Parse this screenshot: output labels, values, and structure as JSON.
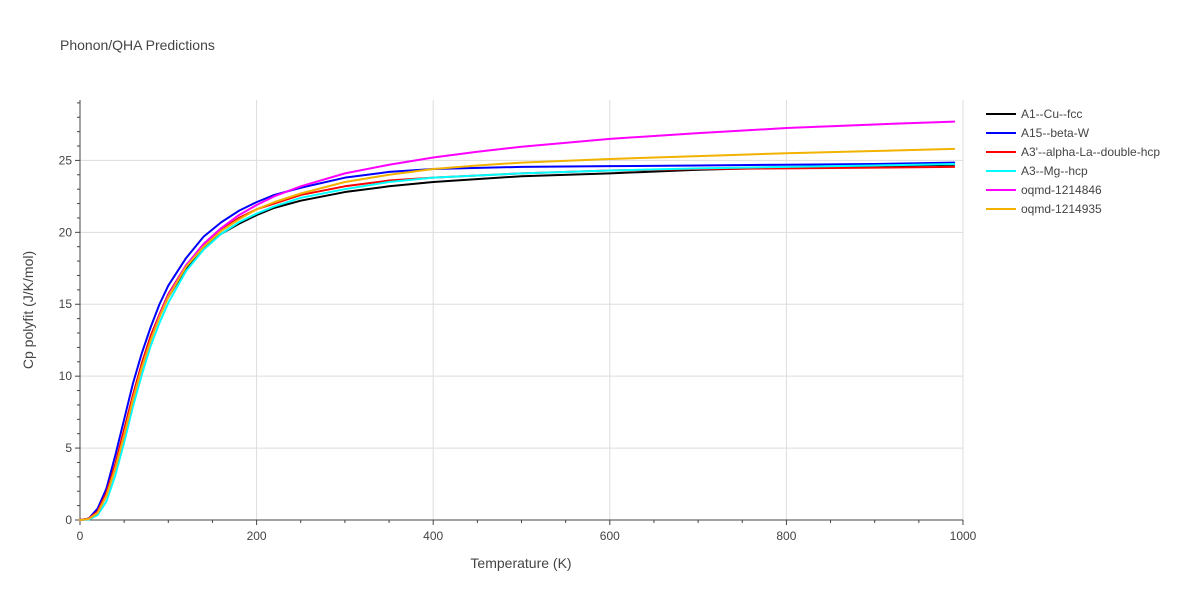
{
  "chart_data": {
    "type": "line",
    "title": "Phonon/QHA Predictions",
    "xlabel": "Temperature (K)",
    "ylabel": "Cp polyfit (J/K/mol)",
    "xlim": [
      0,
      1000
    ],
    "ylim": [
      0,
      29.2
    ],
    "xticks": [
      0,
      200,
      400,
      600,
      800,
      1000
    ],
    "yticks": [
      0,
      5,
      10,
      15,
      20,
      25
    ],
    "grid": true,
    "legend_position": "right",
    "series": [
      {
        "name": "A1--Cu--fcc",
        "color": "#000000",
        "x": [
          0,
          10,
          20,
          30,
          40,
          50,
          60,
          70,
          80,
          90,
          100,
          120,
          140,
          160,
          180,
          200,
          220,
          250,
          300,
          350,
          400,
          500,
          600,
          700,
          800,
          900,
          990
        ],
        "y": [
          0,
          0.1,
          0.6,
          1.8,
          3.7,
          6.0,
          8.5,
          10.7,
          12.6,
          14.2,
          15.5,
          17.5,
          18.9,
          19.9,
          20.6,
          21.2,
          21.7,
          22.2,
          22.8,
          23.2,
          23.5,
          23.9,
          24.1,
          24.35,
          24.5,
          24.6,
          24.7
        ]
      },
      {
        "name": "A15--beta-W",
        "color": "#0000ff",
        "x": [
          0,
          10,
          20,
          30,
          40,
          50,
          60,
          70,
          80,
          90,
          100,
          120,
          140,
          160,
          180,
          200,
          220,
          250,
          300,
          350,
          400,
          500,
          600,
          700,
          800,
          900,
          990
        ],
        "y": [
          0,
          0.1,
          0.8,
          2.2,
          4.5,
          7.0,
          9.5,
          11.6,
          13.4,
          15.0,
          16.3,
          18.2,
          19.7,
          20.7,
          21.5,
          22.1,
          22.6,
          23.1,
          23.8,
          24.2,
          24.4,
          24.55,
          24.6,
          24.65,
          24.7,
          24.75,
          24.85
        ]
      },
      {
        "name": "A3'--alpha-La--double-hcp",
        "color": "#ff0000",
        "x": [
          0,
          10,
          20,
          30,
          40,
          50,
          60,
          70,
          80,
          90,
          100,
          120,
          140,
          160,
          180,
          200,
          220,
          250,
          300,
          350,
          400,
          500,
          600,
          700,
          800,
          900,
          990
        ],
        "y": [
          0,
          0.1,
          0.6,
          1.9,
          3.9,
          6.3,
          8.7,
          10.9,
          12.8,
          14.3,
          15.7,
          17.7,
          19.1,
          20.2,
          21.0,
          21.6,
          22.0,
          22.6,
          23.2,
          23.6,
          23.8,
          24.1,
          24.3,
          24.4,
          24.45,
          24.5,
          24.55
        ]
      },
      {
        "name": "A3--Mg--hcp",
        "color": "#00ffff",
        "x": [
          0,
          10,
          20,
          30,
          40,
          50,
          60,
          70,
          80,
          90,
          100,
          120,
          140,
          160,
          180,
          200,
          220,
          250,
          300,
          350,
          400,
          500,
          600,
          700,
          800,
          900,
          990
        ],
        "y": [
          0,
          0.03,
          0.35,
          1.3,
          3.1,
          5.4,
          7.9,
          10.1,
          12.1,
          13.7,
          15.1,
          17.3,
          18.8,
          19.9,
          20.7,
          21.3,
          21.8,
          22.4,
          23.0,
          23.5,
          23.8,
          24.1,
          24.3,
          24.45,
          24.55,
          24.65,
          24.75
        ]
      },
      {
        "name": "oqmd-1214846",
        "color": "#ff00ff",
        "x": [
          0,
          10,
          20,
          30,
          40,
          50,
          60,
          70,
          80,
          90,
          100,
          120,
          140,
          160,
          180,
          200,
          220,
          250,
          300,
          350,
          400,
          450,
          500,
          600,
          700,
          800,
          900,
          990
        ],
        "y": [
          0,
          0.07,
          0.5,
          1.7,
          3.6,
          5.9,
          8.4,
          10.6,
          12.5,
          14.2,
          15.6,
          17.7,
          19.2,
          20.3,
          21.2,
          21.9,
          22.5,
          23.2,
          24.1,
          24.7,
          25.2,
          25.6,
          25.95,
          26.5,
          26.9,
          27.25,
          27.5,
          27.7
        ]
      },
      {
        "name": "oqmd-1214935",
        "color": "#f2b200",
        "x": [
          0,
          10,
          20,
          30,
          40,
          50,
          60,
          70,
          80,
          90,
          100,
          120,
          140,
          160,
          180,
          200,
          220,
          250,
          300,
          350,
          400,
          450,
          500,
          600,
          700,
          800,
          900,
          990
        ],
        "y": [
          0,
          0.07,
          0.5,
          1.7,
          3.6,
          5.9,
          8.4,
          10.6,
          12.5,
          14.1,
          15.5,
          17.6,
          19.0,
          20.1,
          20.9,
          21.6,
          22.1,
          22.7,
          23.5,
          24.0,
          24.4,
          24.65,
          24.85,
          25.1,
          25.3,
          25.5,
          25.65,
          25.8
        ]
      }
    ]
  }
}
